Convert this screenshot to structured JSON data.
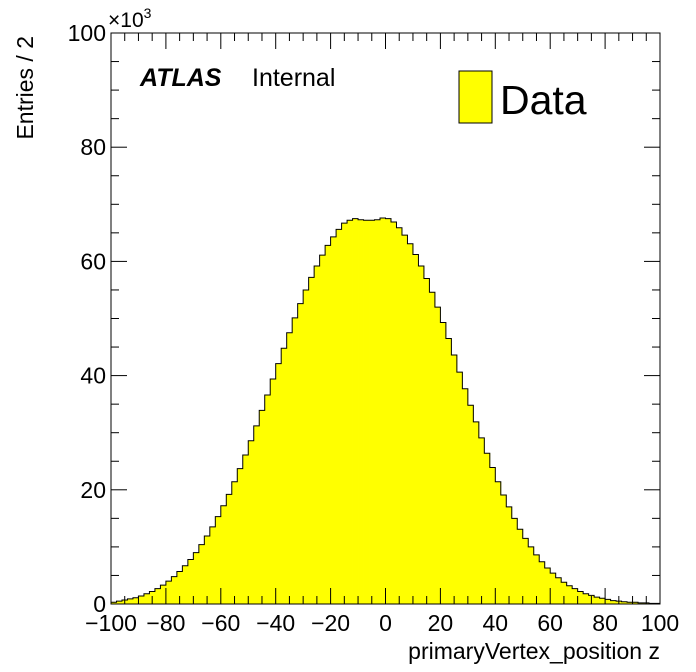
{
  "chart_data": {
    "type": "bar",
    "style": "histogram",
    "x_bin_width": 2,
    "x": [
      -99,
      -97,
      -95,
      -93,
      -91,
      -89,
      -87,
      -85,
      -83,
      -81,
      -79,
      -77,
      -75,
      -73,
      -71,
      -69,
      -67,
      -65,
      -63,
      -61,
      -59,
      -57,
      -55,
      -53,
      -51,
      -49,
      -47,
      -45,
      -43,
      -41,
      -39,
      -37,
      -35,
      -33,
      -31,
      -29,
      -27,
      -25,
      -23,
      -21,
      -19,
      -17,
      -15,
      -13,
      -11,
      -9,
      -7,
      -5,
      -3,
      -1,
      1,
      3,
      5,
      7,
      9,
      11,
      13,
      15,
      17,
      19,
      21,
      23,
      25,
      27,
      29,
      31,
      33,
      35,
      37,
      39,
      41,
      43,
      45,
      47,
      49,
      51,
      53,
      55,
      57,
      59,
      61,
      63,
      65,
      67,
      69,
      71,
      73,
      75,
      77,
      79,
      81,
      83,
      85,
      87,
      89,
      91,
      93,
      95,
      97,
      99
    ],
    "values": [
      0.3,
      0.5,
      0.7,
      0.9,
      1.1,
      1.4,
      1.8,
      2.2,
      2.7,
      3.3,
      4.0,
      4.8,
      5.7,
      6.7,
      7.8,
      9.0,
      10.4,
      11.9,
      13.5,
      15.3,
      17.2,
      19.2,
      21.4,
      23.7,
      26.1,
      28.6,
      31.2,
      33.9,
      36.6,
      39.4,
      42.1,
      44.8,
      47.5,
      50.1,
      52.6,
      55.0,
      57.2,
      59.2,
      61.1,
      62.8,
      64.3,
      65.6,
      66.7,
      67.2,
      67.5,
      67.3,
      67.2,
      67.2,
      67.3,
      67.6,
      67.5,
      66.9,
      65.9,
      64.6,
      63.1,
      61.2,
      59.2,
      57.0,
      54.6,
      52.0,
      49.3,
      46.5,
      43.6,
      40.6,
      37.7,
      34.8,
      31.9,
      29.1,
      26.4,
      23.9,
      21.4,
      19.1,
      17.0,
      15.0,
      13.1,
      11.5,
      10.0,
      8.6,
      7.4,
      6.3,
      5.4,
      4.6,
      3.8,
      3.2,
      2.7,
      2.2,
      1.8,
      1.5,
      1.2,
      1.0,
      0.8,
      0.6,
      0.5,
      0.4,
      0.3,
      0.3,
      0.2,
      0.2,
      0.1,
      0.1
    ],
    "xlim": [
      -100,
      100
    ],
    "ylim": [
      0,
      100
    ],
    "y_multiplier": "×10",
    "y_multiplier_exponent": "3",
    "x_ticks": [
      -100,
      -80,
      -60,
      -40,
      -20,
      0,
      20,
      40,
      60,
      80,
      100
    ],
    "x_tick_labels": [
      "−100",
      "−80",
      "−60",
      "−40",
      "−20",
      "0",
      "20",
      "40",
      "60",
      "80",
      "100"
    ],
    "y_ticks": [
      0,
      20,
      40,
      60,
      80,
      100
    ],
    "y_tick_labels": [
      "0",
      "20",
      "40",
      "60",
      "80",
      "100"
    ],
    "xlabel": "primaryVertex_position z",
    "ylabel": "Entries / 2",
    "experiment_label": "ATLAS",
    "status_label": "Internal",
    "legend": {
      "entries": [
        "Data"
      ],
      "placement": "top-right"
    },
    "grid": false,
    "fill_color": "#ffff00",
    "line_color": "#000000"
  }
}
